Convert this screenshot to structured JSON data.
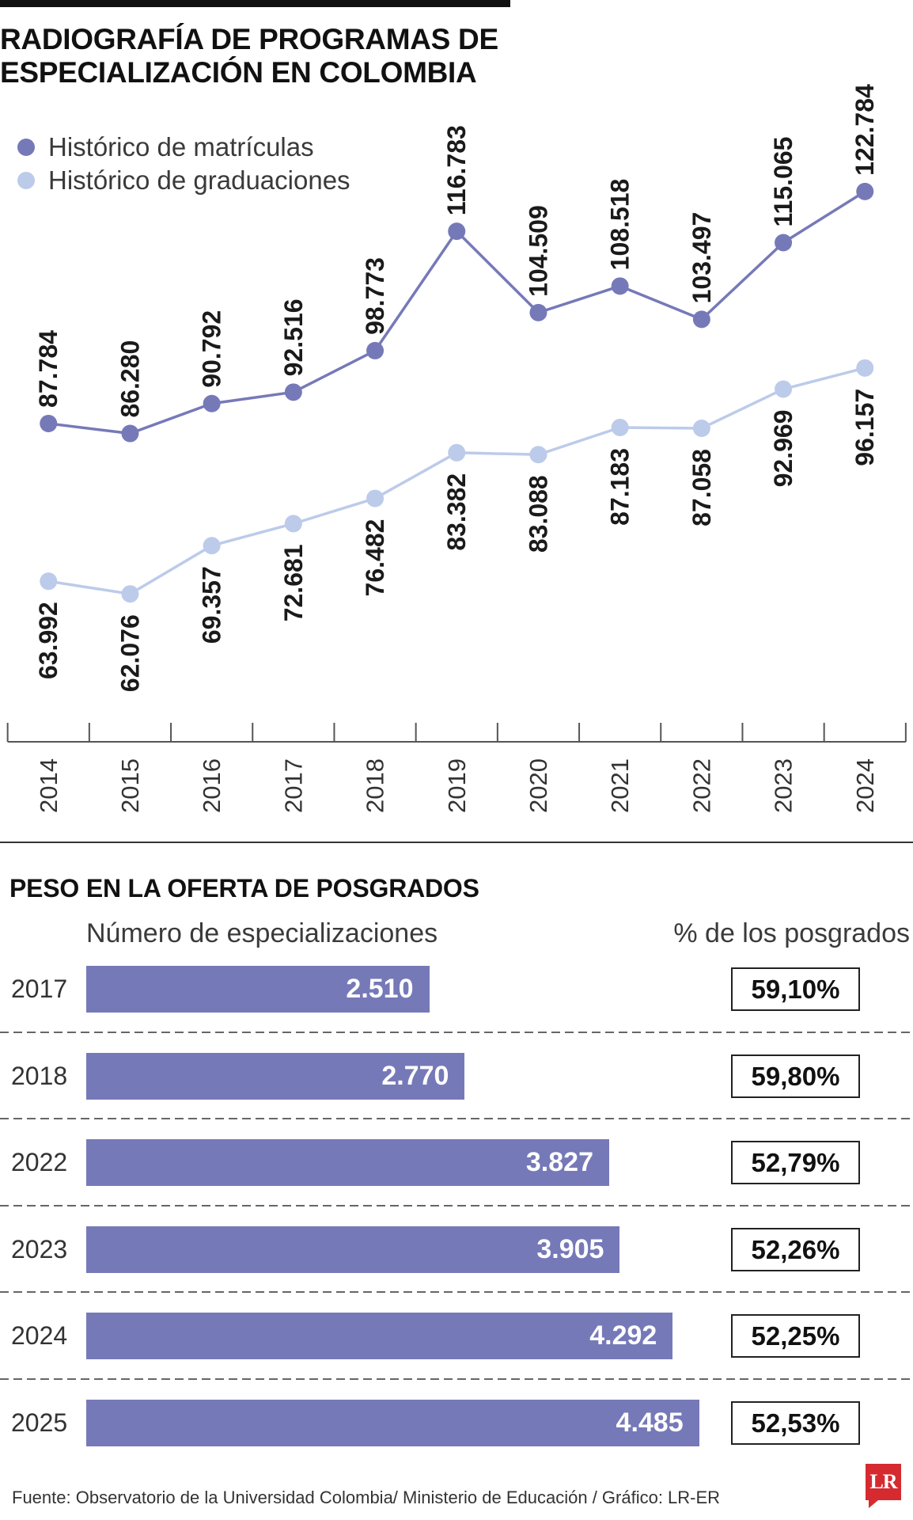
{
  "chart_data": [
    {
      "type": "line",
      "title": [
        "RADIOGRAFÍA DE PROGRAMAS DE",
        "ESPECIALIZACIÓN EN COLOMBIA"
      ],
      "x": [
        "2014",
        "2015",
        "2016",
        "2017",
        "2018",
        "2019",
        "2020",
        "2021",
        "2022",
        "2023",
        "2024"
      ],
      "ylim": [
        60000,
        125000
      ],
      "grid": false,
      "legend": "top-left",
      "series": [
        {
          "name": "Histórico de matrículas",
          "color": "#7679b8",
          "values": [
            87784,
            86280,
            90792,
            92516,
            98773,
            116783,
            104509,
            108518,
            103497,
            115065,
            122784
          ],
          "labels": [
            "87.784",
            "86.280",
            "90.792",
            "92.516",
            "98.773",
            "116.783",
            "104.509",
            "108.518",
            "103.497",
            "115.065",
            "122.784"
          ]
        },
        {
          "name": "Histórico de graduaciones",
          "color": "#bccbea",
          "values": [
            63992,
            62076,
            69357,
            72681,
            76482,
            83382,
            83088,
            87183,
            87058,
            92969,
            96157
          ],
          "labels": [
            "63.992",
            "62.076",
            "69.357",
            "72.681",
            "76.482",
            "83.382",
            "83.088",
            "87.183",
            "87.058",
            "92.969",
            "96.157"
          ]
        }
      ]
    },
    {
      "type": "bar",
      "title": "PESO EN LA OFERTA DE POSGRADOS",
      "categories": [
        "2017",
        "2018",
        "2022",
        "2023",
        "2024",
        "2025"
      ],
      "xlim": [
        0,
        5000
      ],
      "series": [
        {
          "name": "Número de especializaciones",
          "color": "#7679b8",
          "values": [
            2510,
            2770,
            3827,
            3905,
            4292,
            4485
          ],
          "labels": [
            "2.510",
            "2.770",
            "3.827",
            "3.905",
            "4.292",
            "4.485"
          ]
        }
      ],
      "percent_header": "% de los posgrados",
      "percent_labels": [
        "59,10%",
        "59,80%",
        "52,79%",
        "52,26%",
        "52,25%",
        "52,53%"
      ]
    }
  ],
  "footer": {
    "source": "Fuente: Observatorio de la Universidad Colombia/ Ministerio de Educación / Gráfico: LR-ER",
    "logo": "LR"
  }
}
